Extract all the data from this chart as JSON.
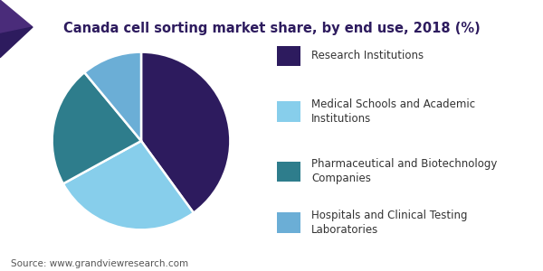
{
  "title": "Canada cell sorting market share, by end use, 2018 (%)",
  "title_color": "#2d1b5e",
  "title_fontsize": 10.5,
  "slices": [
    {
      "label": "Research Institutions",
      "value": 40,
      "color": "#2d1b5e"
    },
    {
      "label": "Medical Schools and Academic\nInstitutions",
      "value": 27,
      "color": "#87ceeb"
    },
    {
      "label": "Pharmaceutical and Biotechnology\nCompanies",
      "value": 22,
      "color": "#2e7d8c"
    },
    {
      "label": "Hospitals and Clinical Testing\nLaboratories",
      "value": 11,
      "color": "#6baed6"
    }
  ],
  "legend_labels": [
    "Research Institutions",
    "Medical Schools and Academic\nInstitutions",
    "Pharmaceutical and Biotechnology\nCompanies",
    "Hospitals and Clinical Testing\nLaboratories"
  ],
  "legend_fontsize": 8.5,
  "source_text": "Source: www.grandviewresearch.com",
  "source_fontsize": 7.5,
  "background_color": "#ffffff",
  "header_bar_color": "#4a2c7a",
  "startangle": 90
}
